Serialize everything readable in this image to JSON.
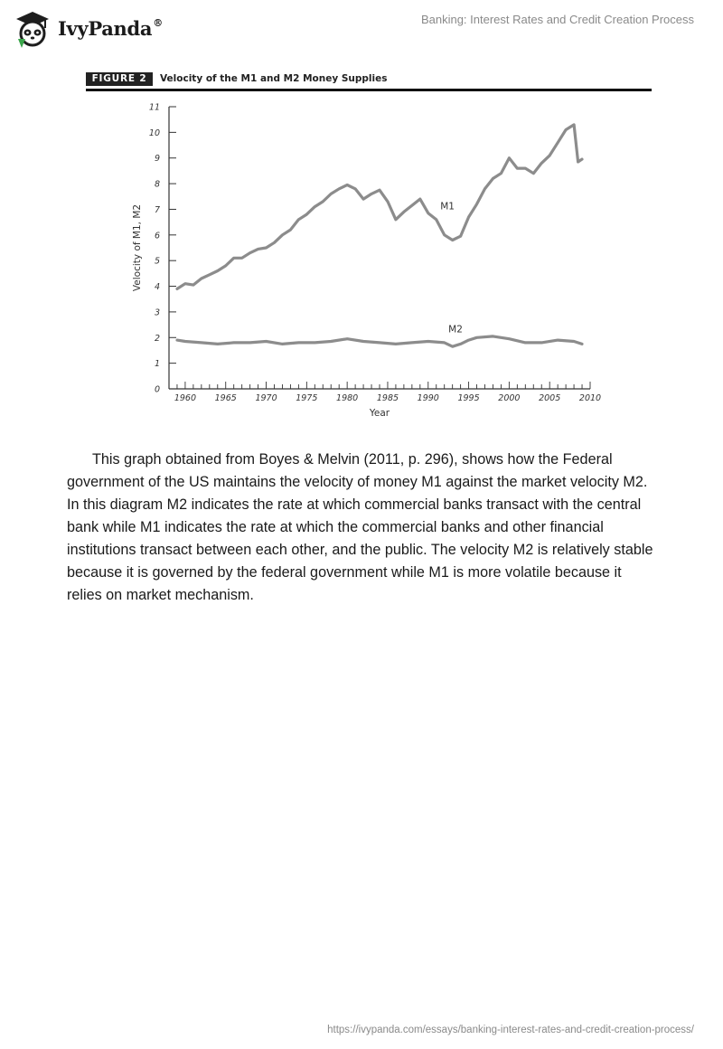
{
  "header": {
    "brand": "IvyPanda",
    "registered_mark": "®",
    "doc_title": "Banking: Interest Rates and Credit Creation Process"
  },
  "figure": {
    "tag": "FIGURE 2",
    "title": "Velocity of the M1 and M2 Money Supplies"
  },
  "chart_data": {
    "type": "line",
    "xlabel": "Year",
    "ylabel": "Velocity of M1, M2",
    "xlim": [
      1958,
      2010
    ],
    "ylim": [
      0,
      11
    ],
    "x_ticks": [
      1960,
      1965,
      1970,
      1975,
      1980,
      1985,
      1990,
      1995,
      2000,
      2005,
      2010
    ],
    "y_ticks": [
      0,
      1,
      2,
      3,
      4,
      5,
      6,
      7,
      8,
      9,
      10,
      11
    ],
    "series": [
      {
        "name": "M1",
        "color": "#8c8c8c",
        "x": [
          1959,
          1960,
          1961,
          1962,
          1963,
          1964,
          1965,
          1966,
          1967,
          1968,
          1969,
          1970,
          1971,
          1972,
          1973,
          1974,
          1975,
          1976,
          1977,
          1978,
          1979,
          1980,
          1981,
          1982,
          1983,
          1984,
          1985,
          1986,
          1987,
          1988,
          1989,
          1990,
          1991,
          1992,
          1993,
          1994,
          1995,
          1996,
          1997,
          1998,
          1999,
          2000,
          2001,
          2002,
          2003,
          2004,
          2005,
          2006,
          2007,
          2008,
          2008.5,
          2009
        ],
        "y": [
          3.9,
          4.1,
          4.05,
          4.3,
          4.45,
          4.6,
          4.8,
          5.1,
          5.1,
          5.3,
          5.45,
          5.5,
          5.7,
          6.0,
          6.2,
          6.6,
          6.8,
          7.1,
          7.3,
          7.6,
          7.8,
          7.95,
          7.8,
          7.4,
          7.6,
          7.75,
          7.3,
          6.6,
          6.9,
          7.15,
          7.4,
          6.85,
          6.6,
          6.0,
          5.8,
          5.95,
          6.7,
          7.2,
          7.8,
          8.2,
          8.4,
          9.0,
          8.6,
          8.6,
          8.4,
          8.8,
          9.1,
          9.6,
          10.1,
          10.3,
          8.85,
          8.95
        ]
      },
      {
        "name": "M2",
        "color": "#8c8c8c",
        "x": [
          1959,
          1960,
          1962,
          1964,
          1966,
          1968,
          1970,
          1972,
          1974,
          1976,
          1978,
          1980,
          1982,
          1984,
          1986,
          1988,
          1990,
          1992,
          1993,
          1994,
          1995,
          1996,
          1998,
          2000,
          2002,
          2004,
          2006,
          2008,
          2009
        ],
        "y": [
          1.9,
          1.85,
          1.8,
          1.75,
          1.8,
          1.8,
          1.85,
          1.75,
          1.8,
          1.8,
          1.85,
          1.95,
          1.85,
          1.8,
          1.75,
          1.8,
          1.85,
          1.8,
          1.65,
          1.75,
          1.9,
          2.0,
          2.05,
          1.95,
          1.8,
          1.8,
          1.9,
          1.85,
          1.75
        ]
      }
    ],
    "annotations": [
      {
        "text": "M1",
        "x": 1991.5,
        "y": 7.0
      },
      {
        "text": "M2",
        "x": 1992.5,
        "y": 2.2
      }
    ]
  },
  "body": {
    "paragraph": "This graph obtained from Boyes & Melvin (2011, p. 296), shows how the Federal government of the US maintains the velocity of money M1 against the market velocity M2. In this diagram M2 indicates the rate at which commercial banks transact with the central bank while M1 indicates the rate at which the commercial banks and other financial institutions transact between each other, and the public. The velocity M2 is relatively stable because it is governed by the federal government while M1 is more volatile because it relies on market mechanism."
  },
  "footer": {
    "url": "https://ivypanda.com/essays/banking-interest-rates-and-credit-creation-process/"
  }
}
